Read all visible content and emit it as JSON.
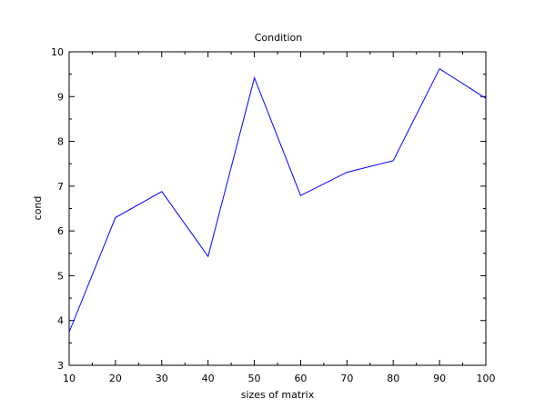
{
  "chart_data": {
    "type": "line",
    "title": "Condition",
    "xlabel": "sizes of matrix",
    "ylabel": "cond",
    "xlim": [
      10,
      100
    ],
    "ylim": [
      3,
      10
    ],
    "xticks": [
      10,
      20,
      30,
      40,
      50,
      60,
      70,
      80,
      90,
      100
    ],
    "yticks": [
      3,
      4,
      5,
      6,
      7,
      8,
      9,
      10
    ],
    "xtick_labels": [
      "10",
      "20",
      "30",
      "40",
      "50",
      "60",
      "70",
      "80",
      "90",
      "100"
    ],
    "ytick_labels": [
      "3",
      "4",
      "5",
      "6",
      "7",
      "8",
      "9",
      "10"
    ],
    "grid": false,
    "series": [
      {
        "color": "#0000ff",
        "x": [
          10,
          20,
          30,
          40,
          50,
          60,
          70,
          80,
          90,
          100
        ],
        "y": [
          3.74,
          6.3,
          6.88,
          5.43,
          9.42,
          6.79,
          7.31,
          7.57,
          9.62,
          8.96
        ]
      }
    ]
  }
}
